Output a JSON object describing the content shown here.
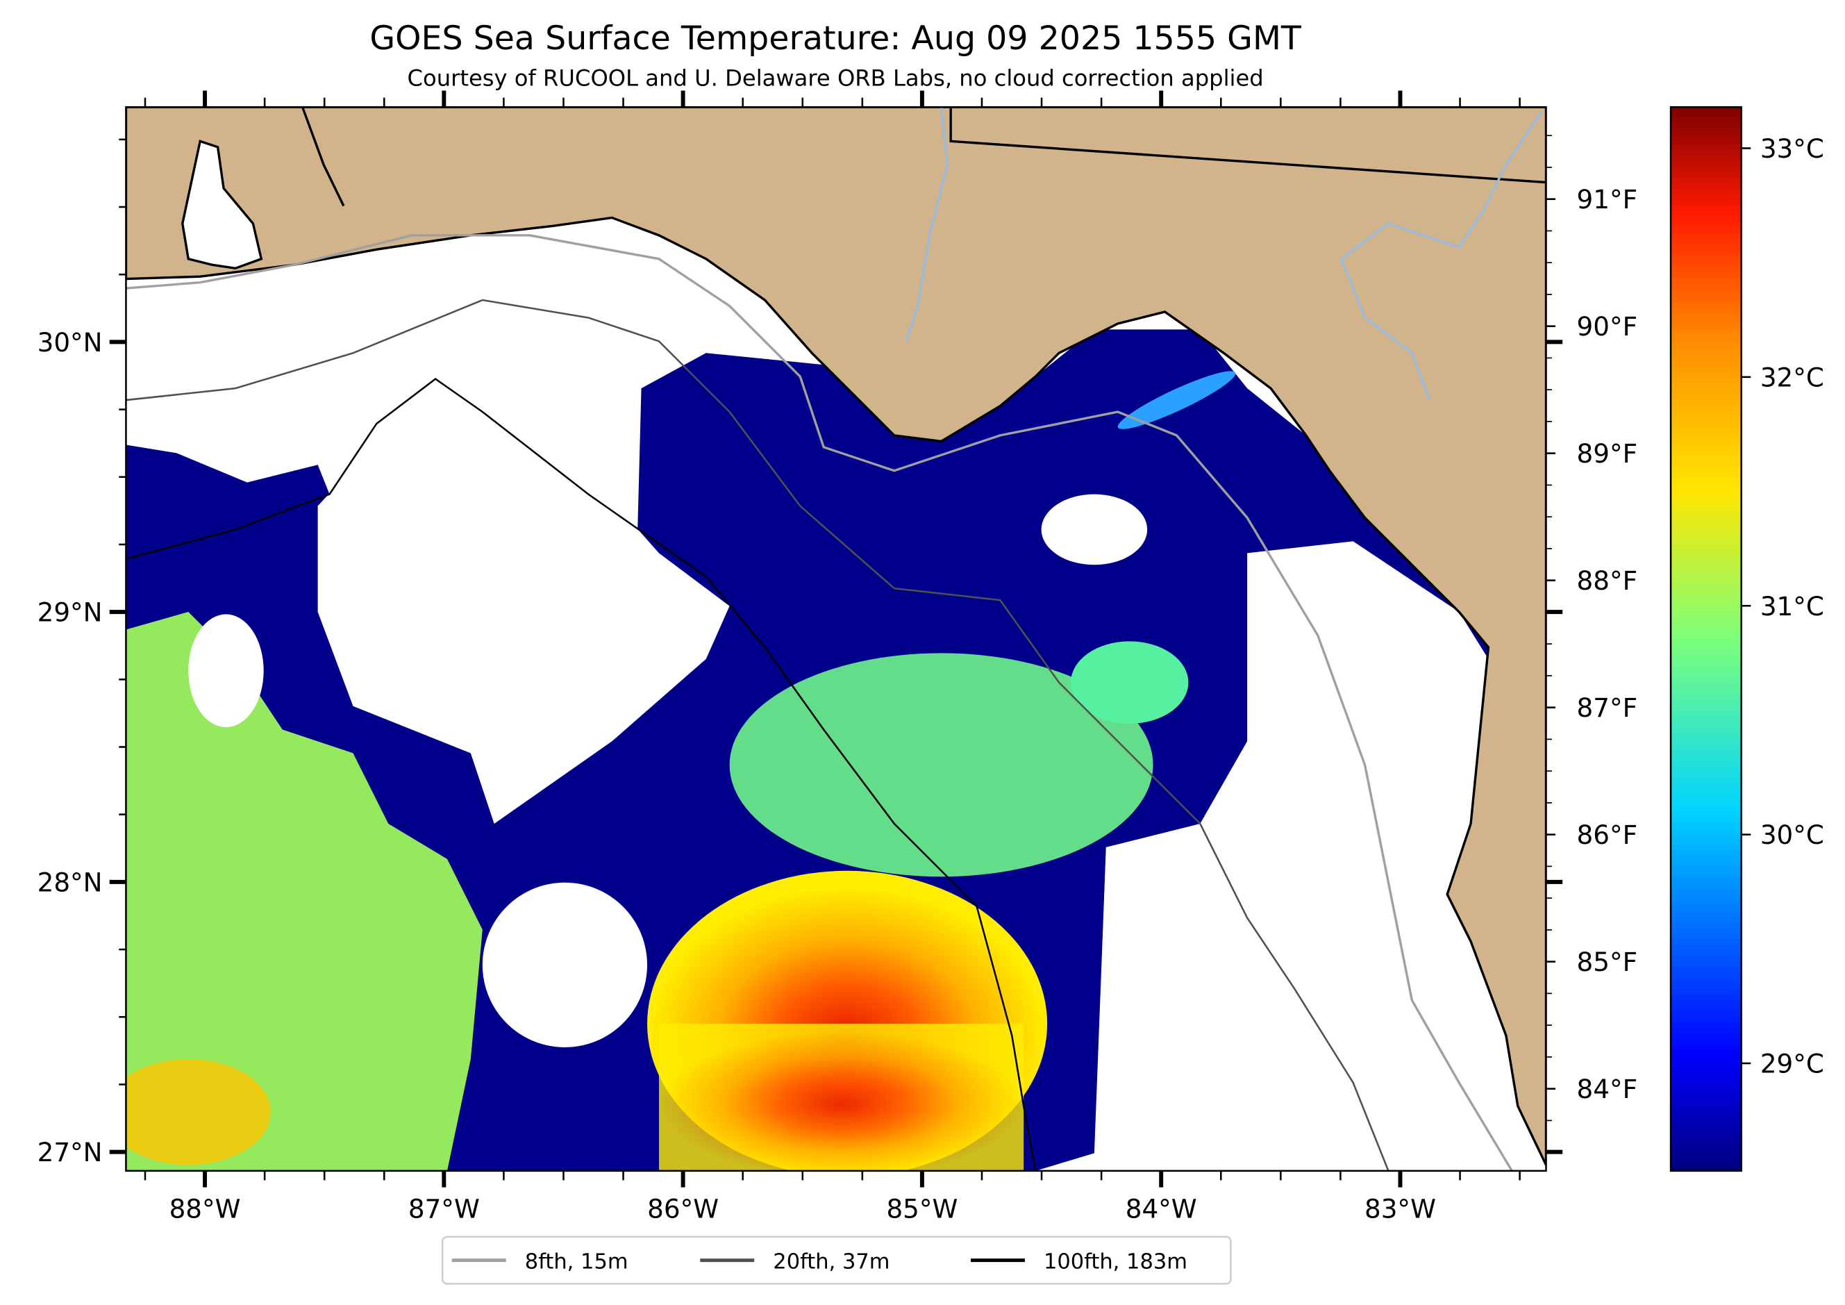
{
  "chart_data": {
    "type": "heatmap",
    "title": "GOES Sea Surface Temperature: Aug 09 2025 1555 GMT",
    "subtitle": "Courtesy of RUCOOL and U. Delaware ORB Labs, no cloud correction applied",
    "xlabel": "",
    "ylabel": "",
    "xlim": [
      -88.33,
      -82.39
    ],
    "ylim": [
      26.93,
      30.87
    ],
    "x_ticks": [
      {
        "value": -88,
        "label": "88°W"
      },
      {
        "value": -87,
        "label": "87°W"
      },
      {
        "value": -86,
        "label": "86°W"
      },
      {
        "value": -85,
        "label": "85°W"
      },
      {
        "value": -84,
        "label": "84°W"
      },
      {
        "value": -83,
        "label": "83°W"
      }
    ],
    "y_ticks": [
      {
        "value": 30,
        "label": "30°N"
      },
      {
        "value": 29,
        "label": "29°N"
      },
      {
        "value": 28,
        "label": "28°N"
      },
      {
        "value": 27,
        "label": "27°N"
      }
    ],
    "right_axis_f_ticks": [
      {
        "value": 91,
        "label": "91°F"
      },
      {
        "value": 90,
        "label": "90°F"
      },
      {
        "value": 89,
        "label": "89°F"
      },
      {
        "value": 88,
        "label": "88°F"
      },
      {
        "value": 87,
        "label": "87°F"
      },
      {
        "value": 86,
        "label": "86°F"
      },
      {
        "value": 85,
        "label": "85°F"
      },
      {
        "value": 84,
        "label": "84°F"
      }
    ],
    "colorbar": {
      "colormap": "jet",
      "range_c": [
        28.53,
        33.18
      ],
      "ticks": [
        {
          "value": 33,
          "label": "33°C"
        },
        {
          "value": 32,
          "label": "32°C"
        },
        {
          "value": 31,
          "label": "31°C"
        },
        {
          "value": 30,
          "label": "30°C"
        },
        {
          "value": 29,
          "label": "29°C"
        }
      ]
    },
    "legend": {
      "placement": "bottom-center",
      "entries": [
        {
          "label": "8fth, 15m",
          "color": "#a0a0a0"
        },
        {
          "label": "20fth, 37m",
          "color": "#505050"
        },
        {
          "label": "100fth, 183m",
          "color": "#000000"
        }
      ]
    },
    "colors": {
      "land": "#d2b48c",
      "no_data": "#ffffff",
      "river": "#99bbdd"
    },
    "sst_regions": [
      {
        "area": "south-central warm core",
        "approx_c": 32.6
      },
      {
        "area": "south-central",
        "approx_c": 31.8
      },
      {
        "area": "central shelf",
        "approx_c": 30.8
      },
      {
        "area": "western shelf",
        "approx_c": 31.0
      },
      {
        "area": "nearshore / background",
        "approx_c": 28.6
      }
    ]
  }
}
